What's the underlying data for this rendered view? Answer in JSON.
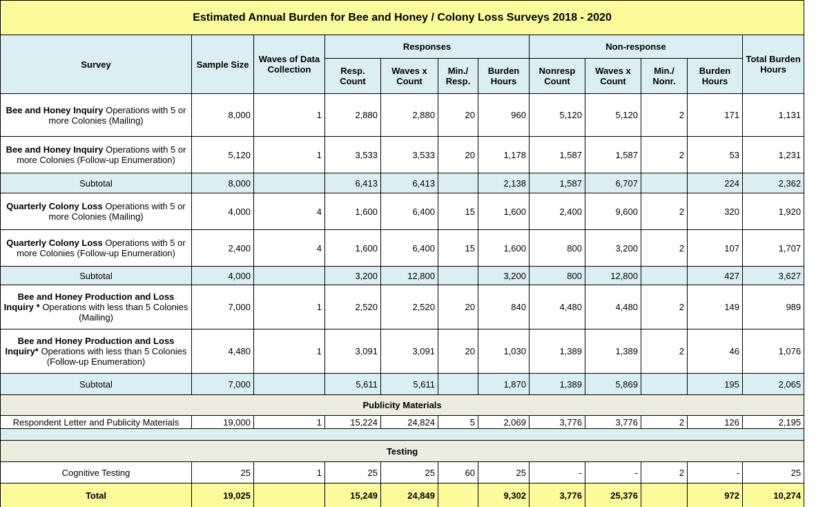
{
  "title": "Estimated Annual Burden for Bee and Honey / Colony Loss Surveys 2018 - 2020",
  "header": {
    "survey": "Survey",
    "sample_size": "Sample Size",
    "waves": "Waves of Data Collection",
    "responses": "Responses",
    "non_response": "Non-response",
    "total": "Total Burden Hours",
    "responses_cols": [
      "Resp. Count",
      "Waves x Count",
      "Min./ Resp.",
      "Burden Hours"
    ],
    "non_response_cols": [
      "Nonresp Count",
      "Waves x Count",
      "Min./ Nonr.",
      "Burden Hours"
    ]
  },
  "rows": [
    {
      "kind": "data",
      "survey": {
        "bold": "Bee and Honey Inquiry",
        "text": "Operations with 5 or more Colonies (Mailing)"
      },
      "cells": [
        "8,000",
        "1",
        "2,880",
        "2,880",
        "20",
        "960",
        "5,120",
        "5,120",
        "2",
        "171",
        "1,131"
      ]
    },
    {
      "kind": "data",
      "survey": {
        "bold": "Bee and Honey Inquiry",
        "text": "Operations with 5 or more Colonies (Follow-up Enumeration)"
      },
      "cells": [
        "5,120",
        "1",
        "3,533",
        "3,533",
        "20",
        "1,178",
        "1,587",
        "1,587",
        "2",
        "53",
        "1,231"
      ]
    },
    {
      "kind": "subtotal",
      "label": "Subtotal",
      "cells": [
        "8,000",
        null,
        "6,413",
        "6,413",
        null,
        "2,138",
        "1,587",
        "6,707",
        null,
        "224",
        "2,362"
      ]
    },
    {
      "kind": "data",
      "survey": {
        "bold": "Quarterly Colony Loss",
        "text": "Operations with 5 or more Colonies (Mailing)"
      },
      "cells": [
        "4,000",
        "4",
        "1,600",
        "6,400",
        "15",
        "1,600",
        "2,400",
        "9,600",
        "2",
        "320",
        "1,920"
      ]
    },
    {
      "kind": "data",
      "survey": {
        "bold": "Quarterly Colony Loss",
        "text": "Operations with 5 or more Colonies (Follow-up Enumeration)"
      },
      "cells": [
        "2,400",
        "4",
        "1,600",
        "6,400",
        "15",
        "1,600",
        "800",
        "3,200",
        "2",
        "107",
        "1,707"
      ]
    },
    {
      "kind": "subtotal",
      "label": "Subtotal",
      "cells": [
        "4,000",
        null,
        "3,200",
        "12,800",
        null,
        "3,200",
        "800",
        "12,800",
        null,
        "427",
        "3,627"
      ]
    },
    {
      "kind": "data",
      "survey": {
        "bold": "Bee and Honey Production and Loss Inquiry *",
        "text": "Operations with less than 5 Colonies (Mailing)"
      },
      "cells": [
        "7,000",
        "1",
        "2,520",
        "2,520",
        "20",
        "840",
        "4,480",
        "4,480",
        "2",
        "149",
        "989"
      ]
    },
    {
      "kind": "data",
      "survey": {
        "bold": "Bee and Honey Production and Loss Inquiry*",
        "text": "Operations with less than 5 Colonies (Follow-up Enumeration)"
      },
      "cells": [
        "4,480",
        "1",
        "3,091",
        "3,091",
        "20",
        "1,030",
        "1,389",
        "1,389",
        "2",
        "46",
        "1,076"
      ]
    },
    {
      "kind": "subtotal",
      "label": "Subtotal",
      "cells": [
        "7,000",
        null,
        "5,611",
        "5,611",
        null,
        "1,870",
        "1,389",
        "5,869",
        null,
        "195",
        "2,065"
      ]
    },
    {
      "kind": "section",
      "label": "Publicity Materials"
    },
    {
      "kind": "plain",
      "label": "Respondent  Letter and Publicity Materials",
      "cells": [
        "19,000",
        "1",
        "15,224",
        "24,824",
        "5",
        "2,069",
        "3,776",
        "3,776",
        "2",
        "126",
        "2,195"
      ]
    },
    {
      "kind": "blank"
    },
    {
      "kind": "section",
      "label": "Testing"
    },
    {
      "kind": "plain",
      "label": "Cognitive Testing",
      "cells": [
        "25",
        "1",
        "25",
        "25",
        "60",
        "25",
        "-",
        "-",
        "2",
        "-",
        "25"
      ]
    },
    {
      "kind": "total",
      "label": "Total",
      "cells": [
        "19,025",
        null,
        "15,249",
        "24,849",
        null,
        "9,302",
        "3,776",
        "25,376",
        null,
        "972",
        "10,274"
      ]
    }
  ]
}
